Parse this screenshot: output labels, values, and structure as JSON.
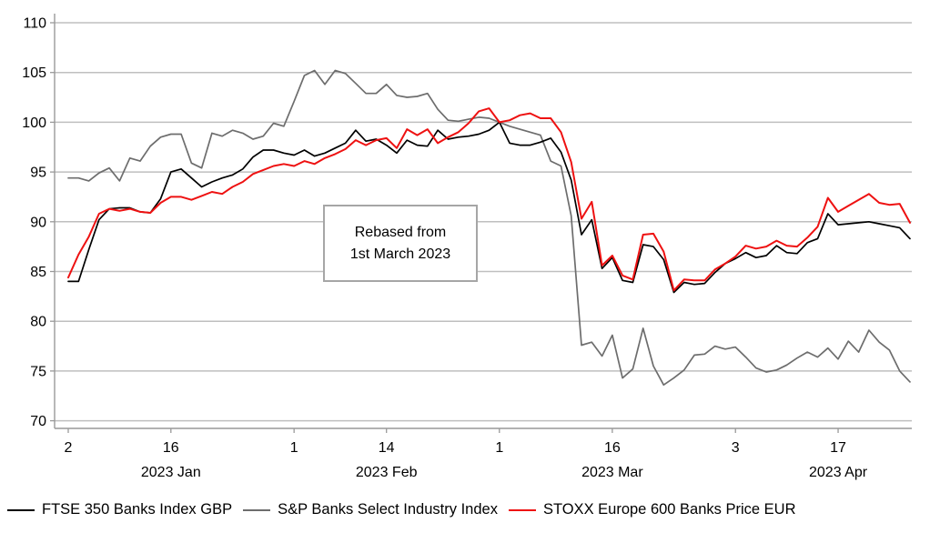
{
  "chart_data": {
    "type": "line",
    "title": "",
    "xlabel": "",
    "ylabel": "",
    "ylim": [
      70,
      110
    ],
    "y_ticks": [
      70,
      75,
      80,
      85,
      90,
      95,
      100,
      105,
      110
    ],
    "grid": "horizontal",
    "legend_position": "bottom-left",
    "x_dates": [
      "Jan 2",
      "Jan 3",
      "Jan 4",
      "Jan 5",
      "Jan 6",
      "Jan 9",
      "Jan 10",
      "Jan 11",
      "Jan 12",
      "Jan 13",
      "Jan 16",
      "Jan 17",
      "Jan 18",
      "Jan 19",
      "Jan 20",
      "Jan 23",
      "Jan 24",
      "Jan 25",
      "Jan 26",
      "Jan 27",
      "Jan 30",
      "Jan 31",
      "Feb 1",
      "Feb 2",
      "Feb 3",
      "Feb 6",
      "Feb 7",
      "Feb 8",
      "Feb 9",
      "Feb 10",
      "Feb 13",
      "Feb 14",
      "Feb 15",
      "Feb 16",
      "Feb 17",
      "Feb 20",
      "Feb 21",
      "Feb 22",
      "Feb 23",
      "Feb 24",
      "Feb 27",
      "Feb 28",
      "Mar 1",
      "Mar 2",
      "Mar 3",
      "Mar 6",
      "Mar 7",
      "Mar 8",
      "Mar 9",
      "Mar 10",
      "Mar 13",
      "Mar 14",
      "Mar 15",
      "Mar 16",
      "Mar 17",
      "Mar 20",
      "Mar 21",
      "Mar 22",
      "Mar 23",
      "Mar 24",
      "Mar 27",
      "Mar 28",
      "Mar 29",
      "Mar 30",
      "Mar 31",
      "Apr 3",
      "Apr 4",
      "Apr 5",
      "Apr 6",
      "Apr 7",
      "Apr 10",
      "Apr 11",
      "Apr 12",
      "Apr 13",
      "Apr 14",
      "Apr 17",
      "Apr 18",
      "Apr 19",
      "Apr 20",
      "Apr 21",
      "Apr 24",
      "Apr 25",
      "Apr 26"
    ],
    "x_tick_labels": [
      {
        "i": 0,
        "label": "2"
      },
      {
        "i": 10,
        "label": "16"
      },
      {
        "i": 22,
        "label": "1"
      },
      {
        "i": 31,
        "label": "14"
      },
      {
        "i": 42,
        "label": "1"
      },
      {
        "i": 53,
        "label": "16"
      },
      {
        "i": 65,
        "label": "3"
      },
      {
        "i": 75,
        "label": "17"
      }
    ],
    "month_labels": [
      {
        "i": 10,
        "label": "2023 Jan"
      },
      {
        "i": 31,
        "label": "2023 Feb"
      },
      {
        "i": 53,
        "label": "2023 Mar"
      },
      {
        "i": 75,
        "label": "2023 Apr"
      }
    ],
    "series": [
      {
        "name": "FTSE 350 Banks Index GBP",
        "color": "#000000",
        "width": 1.7,
        "values": [
          84.0,
          84.0,
          87.2,
          90.2,
          91.3,
          91.4,
          91.4,
          91.0,
          90.9,
          92.3,
          95.0,
          95.3,
          94.4,
          93.5,
          94.0,
          94.4,
          94.7,
          95.3,
          96.5,
          97.2,
          97.2,
          96.9,
          96.7,
          97.2,
          96.6,
          96.9,
          97.4,
          97.9,
          99.2,
          98.1,
          98.3,
          97.7,
          96.9,
          98.2,
          97.7,
          97.6,
          99.2,
          98.3,
          98.5,
          98.6,
          98.8,
          99.2,
          100.0,
          97.9,
          97.7,
          97.7,
          98.0,
          98.4,
          97.0,
          94.2,
          88.7,
          90.2,
          85.3,
          86.4,
          84.1,
          83.9,
          87.7,
          87.5,
          86.2,
          82.9,
          83.9,
          83.7,
          83.8,
          84.9,
          85.8,
          86.3,
          86.9,
          86.4,
          86.6,
          87.6,
          86.9,
          86.8,
          87.9,
          88.3,
          90.8,
          89.7,
          89.8,
          89.9,
          90.0,
          89.8,
          89.6,
          89.4,
          88.3
        ]
      },
      {
        "name": "S&P Banks Select Industry Index",
        "color": "#6d6d6d",
        "width": 1.7,
        "values": [
          94.4,
          94.4,
          94.1,
          94.9,
          95.4,
          94.1,
          96.4,
          96.1,
          97.6,
          98.5,
          98.8,
          98.8,
          95.9,
          95.4,
          98.9,
          98.6,
          99.2,
          98.9,
          98.3,
          98.6,
          99.9,
          99.6,
          102.1,
          104.7,
          105.2,
          103.8,
          105.2,
          104.9,
          103.9,
          102.9,
          102.9,
          103.8,
          102.7,
          102.5,
          102.6,
          102.9,
          101.3,
          100.2,
          100.1,
          100.3,
          100.5,
          100.4,
          100.0,
          99.6,
          99.3,
          99.0,
          98.7,
          96.1,
          95.6,
          90.6,
          77.6,
          77.9,
          76.5,
          78.6,
          74.3,
          75.2,
          79.3,
          75.5,
          73.6,
          74.3,
          75.1,
          76.6,
          76.7,
          77.5,
          77.2,
          77.4,
          76.4,
          75.3,
          74.9,
          75.1,
          75.6,
          76.3,
          76.9,
          76.4,
          77.3,
          76.2,
          78.0,
          76.9,
          79.1,
          77.9,
          77.1,
          75.0,
          73.9
        ]
      },
      {
        "name": "STOXX Europe 600 Banks Price EUR",
        "color": "#ee1111",
        "width": 2.0,
        "values": [
          84.4,
          86.7,
          88.5,
          90.8,
          91.3,
          91.1,
          91.3,
          91.0,
          90.9,
          91.9,
          92.5,
          92.5,
          92.2,
          92.6,
          93.0,
          92.8,
          93.5,
          94.0,
          94.8,
          95.2,
          95.6,
          95.8,
          95.6,
          96.1,
          95.8,
          96.4,
          96.8,
          97.3,
          98.2,
          97.7,
          98.2,
          98.4,
          97.4,
          99.3,
          98.7,
          99.3,
          97.9,
          98.5,
          99.0,
          99.9,
          101.1,
          101.4,
          100.0,
          100.2,
          100.7,
          100.9,
          100.4,
          100.4,
          99.0,
          96.0,
          90.3,
          92.0,
          85.6,
          86.6,
          84.6,
          84.2,
          88.7,
          88.8,
          87.0,
          83.1,
          84.2,
          84.1,
          84.1,
          85.2,
          85.8,
          86.5,
          87.6,
          87.3,
          87.5,
          88.1,
          87.6,
          87.5,
          88.4,
          89.5,
          92.4,
          91.0,
          91.6,
          92.2,
          92.8,
          91.9,
          91.7,
          91.8,
          89.9
        ]
      }
    ],
    "annotation": {
      "line1": "Rebased from",
      "line2": "1st March 2023"
    }
  },
  "colors": {
    "background": "#ffffff",
    "gridline": "#bfbfbf",
    "axis": "#999999",
    "text": "#000000"
  }
}
